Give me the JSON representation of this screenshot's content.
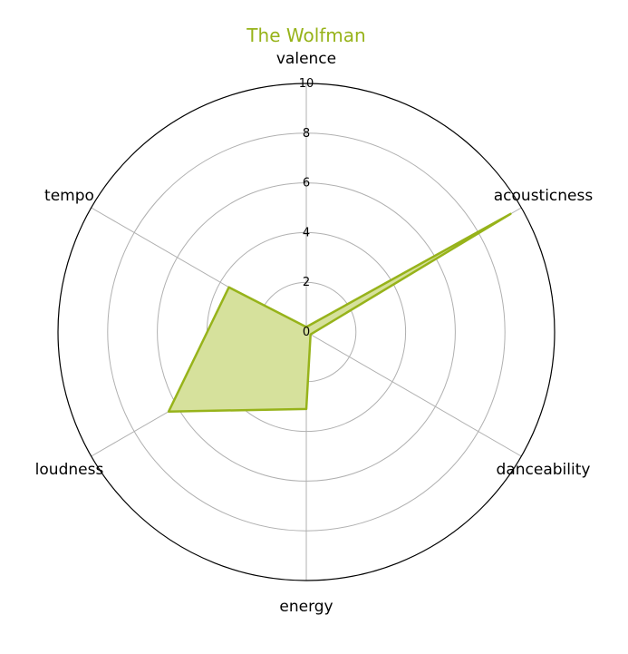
{
  "chart_data": {
    "type": "radar",
    "title": "The Wolfman",
    "axes": [
      "valence",
      "acousticness",
      "danceability",
      "energy",
      "loudness",
      "tempo"
    ],
    "series": [
      {
        "values": [
          0.2,
          9.5,
          0.2,
          3.1,
          6.4,
          3.6
        ]
      }
    ],
    "rticks": [
      0,
      2,
      4,
      6,
      8,
      10
    ],
    "rlim": [
      0,
      10
    ],
    "grid": true,
    "colors": {
      "series": "#97b31a",
      "fill": "#d6e19c",
      "grid": "#b0b0b0",
      "outer": "#000000"
    }
  }
}
